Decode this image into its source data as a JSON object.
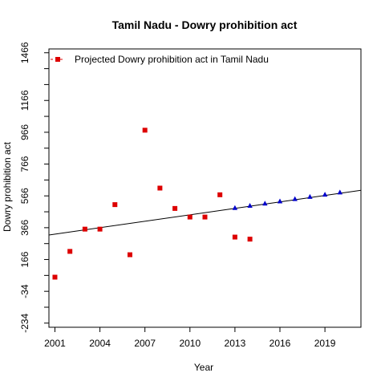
{
  "chart_data": {
    "type": "scatter",
    "title": "Tamil Nadu  -  Dowry prohibition act",
    "xlabel": "Year",
    "ylabel": "Dowry prohibition act",
    "xlim": [
      2000.6,
      2021.4
    ],
    "ylim": [
      -260,
      1490
    ],
    "x_ticks": [
      2001,
      2004,
      2007,
      2010,
      2013,
      2016,
      2019
    ],
    "y_ticks": [
      -234,
      -34,
      166,
      366,
      566,
      766,
      966,
      1166,
      1466
    ],
    "y_minor_ticks": [
      -134,
      66,
      266,
      466,
      666,
      866,
      1066,
      1266,
      1366
    ],
    "grid": false,
    "legend": {
      "position": "top-left",
      "entries": [
        "Projected  Dowry prohibition act  in  Tamil Nadu"
      ]
    },
    "series": [
      {
        "name": "Projected  Dowry prohibition act  in  Tamil Nadu",
        "marker": "square",
        "color": "#dd0000",
        "points": [
          [
            2001,
            55
          ],
          [
            2002,
            217
          ],
          [
            2003,
            357
          ],
          [
            2004,
            357
          ],
          [
            2005,
            511
          ],
          [
            2006,
            196
          ],
          [
            2007,
            979
          ],
          [
            2008,
            615
          ],
          [
            2009,
            487
          ],
          [
            2010,
            433
          ],
          [
            2011,
            433
          ],
          [
            2012,
            573
          ],
          [
            2013,
            307
          ],
          [
            2014,
            294
          ]
        ]
      },
      {
        "marker": "triangle",
        "color": "#0000cc",
        "points": [
          [
            2013,
            490
          ],
          [
            2014,
            504
          ],
          [
            2015,
            518
          ],
          [
            2016,
            532
          ],
          [
            2017,
            546
          ],
          [
            2018,
            560
          ],
          [
            2019,
            574
          ],
          [
            2020,
            588
          ]
        ]
      }
    ],
    "trend_line": {
      "color": "#000000",
      "from": [
        2000.6,
        320
      ],
      "to": [
        2021.4,
        601
      ]
    }
  }
}
